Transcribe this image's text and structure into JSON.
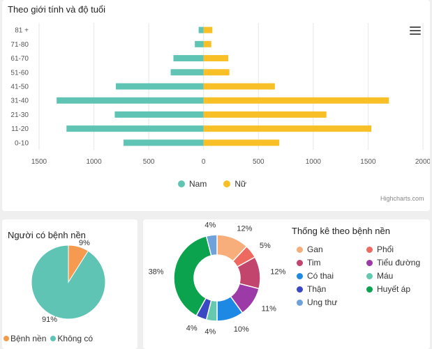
{
  "chart_data": [
    {
      "type": "bar",
      "orientation": "horizontal",
      "title": "Theo giới tính và độ tuổi",
      "categories": [
        "81 +",
        "71-80",
        "61-70",
        "51-60",
        "41-50",
        "31-40",
        "21-30",
        "11-20",
        "0-10"
      ],
      "series": [
        {
          "name": "Nam",
          "color": "#5fc4b4",
          "values": [
            -45,
            -80,
            -275,
            -300,
            -800,
            -1340,
            -810,
            -1250,
            -730
          ]
        },
        {
          "name": "Nữ",
          "color": "#f8bf26",
          "values": [
            80,
            70,
            225,
            235,
            650,
            1690,
            1120,
            1530,
            690
          ]
        }
      ],
      "x_ticks": [
        "1500",
        "1000",
        "500",
        "0",
        "500",
        "1000",
        "1500",
        "2000"
      ],
      "x_tick_values": [
        -1500,
        -1000,
        -500,
        0,
        500,
        1000,
        1500,
        2000
      ],
      "xlim": [
        -1500,
        2000
      ],
      "grid": true,
      "legend": "bottom",
      "credit": "Highcharts.com"
    },
    {
      "type": "pie",
      "title": "Người có bệnh nền",
      "slices": [
        {
          "name": "Bệnh nền",
          "value": 9,
          "label": "9%",
          "color": "#f59a4f"
        },
        {
          "name": "Không có",
          "value": 91,
          "label": "91%",
          "color": "#5fc4b4"
        }
      ],
      "legend": "bottom"
    },
    {
      "type": "pie",
      "variant": "donut",
      "title": "Thống kê theo bệnh nền",
      "slices": [
        {
          "name": "Gan",
          "value": 12,
          "label": "12%",
          "color": "#f7ae7a"
        },
        {
          "name": "Phổi",
          "value": 5,
          "label": "5%",
          "color": "#ee6a60"
        },
        {
          "name": "Tim",
          "value": 12,
          "label": "12%",
          "color": "#c2456e"
        },
        {
          "name": "Tiểu đường",
          "value": 11,
          "label": "11%",
          "color": "#9c3aa8"
        },
        {
          "name": "Có thai",
          "value": 10,
          "label": "10%",
          "color": "#1e88e5"
        },
        {
          "name": "Máu",
          "value": 4,
          "label": "4%",
          "color": "#65c9b0"
        },
        {
          "name": "Thận",
          "value": 4,
          "label": "4%",
          "color": "#3a48c4"
        },
        {
          "name": "Huyết áp",
          "value": 38,
          "label": "38%",
          "color": "#0ba34e"
        },
        {
          "name": "Ung thư",
          "value": 4,
          "label": "4%",
          "color": "#6fa2db"
        }
      ],
      "legend": "right"
    }
  ]
}
